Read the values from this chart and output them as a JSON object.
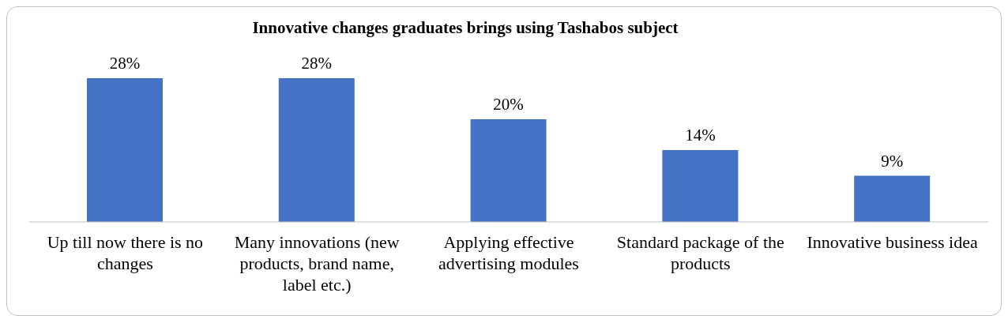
{
  "chart_data": {
    "type": "bar",
    "title": "Innovative changes graduates brings using Tashabos subject",
    "categories": [
      "Up till now there is no changes",
      "Many innovations (new products, brand name, label etc.)",
      "Applying effective advertising modules",
      "Standard package of the products",
      "Innovative business idea"
    ],
    "values": [
      28,
      28,
      20,
      14,
      9
    ],
    "color": "#4472c4",
    "data_labels": true,
    "value_labels": [
      "28%",
      "28%",
      "20%",
      "14%",
      "9%"
    ],
    "grid": false,
    "legend": false
  }
}
